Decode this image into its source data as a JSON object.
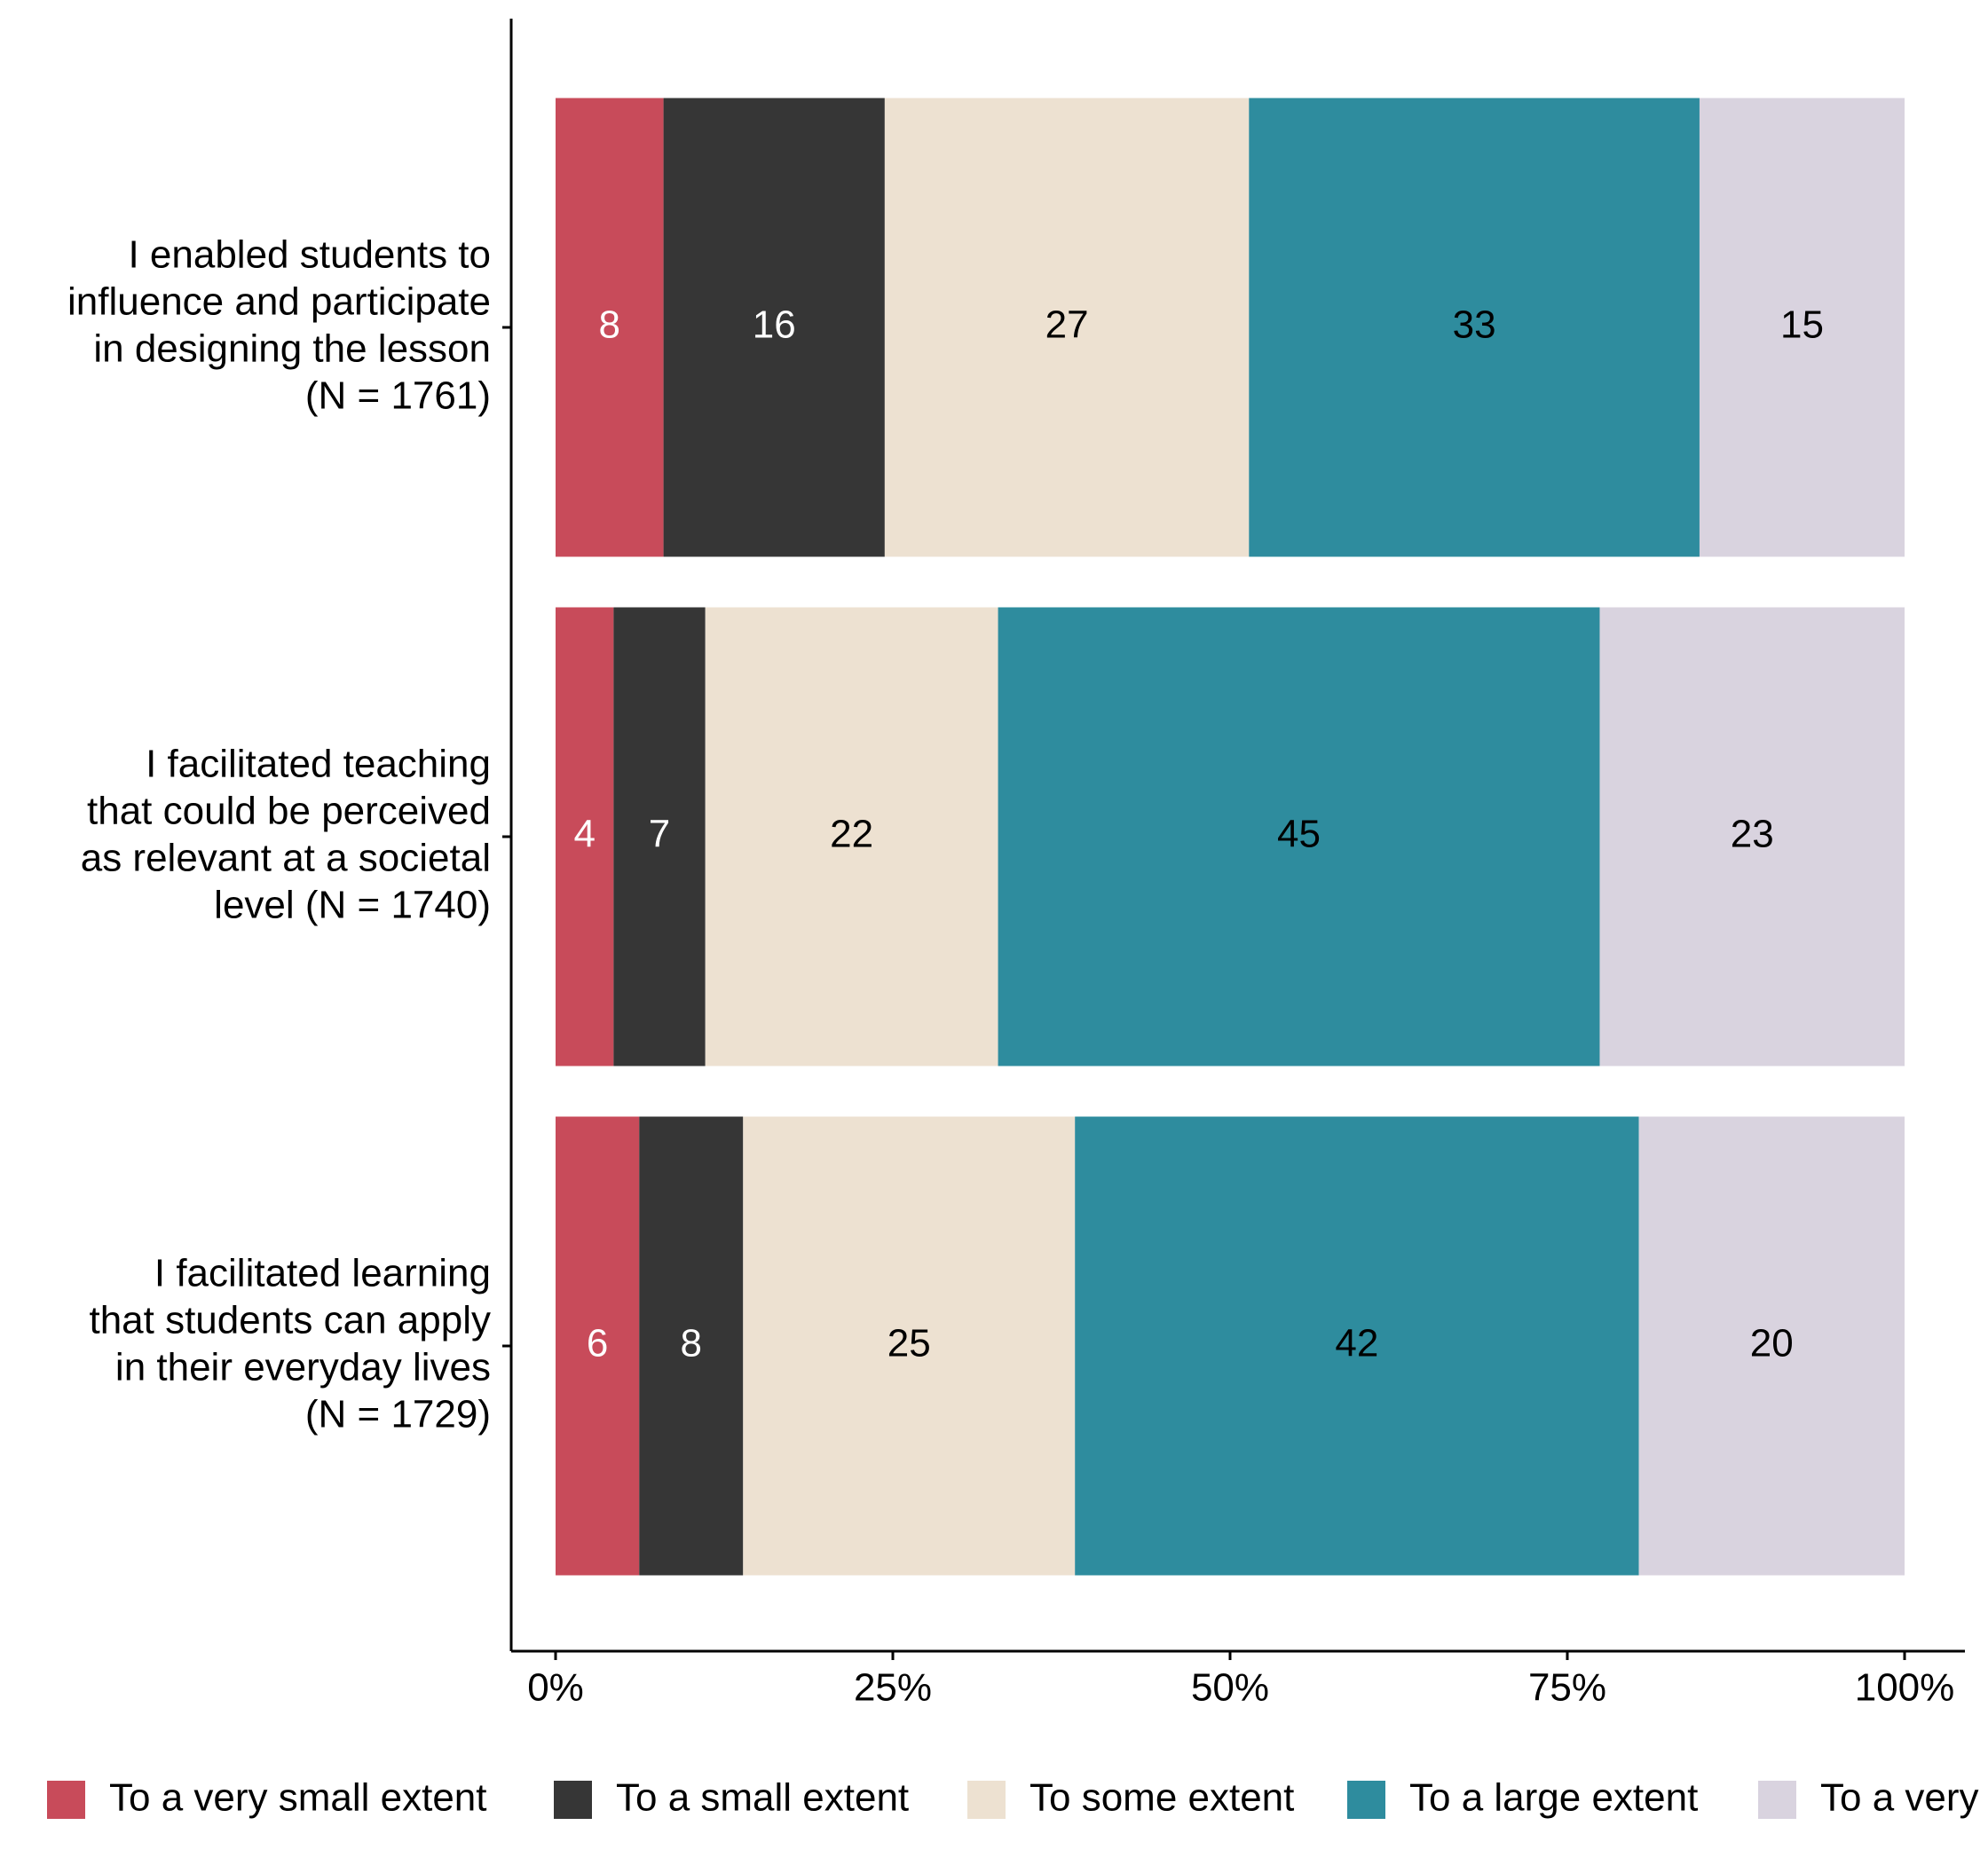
{
  "chart_data": {
    "type": "stacked_barh",
    "categories": [
      "I enabled students to\ninfluence and participate\nin designing the lesson\n(N = 1761)",
      "I facilitated teaching\nthat could be perceived\nas relevant at a societal\nlevel (N = 1740)",
      "I facilitated learning\nthat students can apply\nin their everyday lives\n(N = 1729)"
    ],
    "series": [
      {
        "name": "To a very small extent",
        "color": "#c84b5a",
        "values": [
          8.0,
          4.3,
          6.2
        ],
        "value_labels": [
          "8",
          "4",
          "6"
        ]
      },
      {
        "name": "To a small extent",
        "color": "#363636",
        "values": [
          16.4,
          6.8,
          7.7
        ],
        "value_labels": [
          "16",
          "7",
          "8"
        ]
      },
      {
        "name": "To some extent",
        "color": "#ede1d1",
        "values": [
          27.0,
          21.7,
          24.6
        ],
        "value_labels": [
          "27",
          "22",
          "25"
        ]
      },
      {
        "name": "To a large extent",
        "color": "#2e8c9e",
        "values": [
          33.4,
          44.6,
          41.8
        ],
        "value_labels": [
          "33",
          "45",
          "42"
        ]
      },
      {
        "name": "To a very",
        "color": "#d9d3df",
        "values": [
          15.2,
          22.6,
          19.7
        ],
        "value_labels": [
          "15",
          "23",
          "20"
        ]
      }
    ],
    "xlim": [
      0,
      100
    ],
    "xticks": [
      {
        "value": 0,
        "label": "0%"
      },
      {
        "value": 25,
        "label": "25%"
      },
      {
        "value": 50,
        "label": "50%"
      },
      {
        "value": 75,
        "label": "75%"
      },
      {
        "value": 100,
        "label": "100%"
      }
    ],
    "legend": "bottom"
  }
}
